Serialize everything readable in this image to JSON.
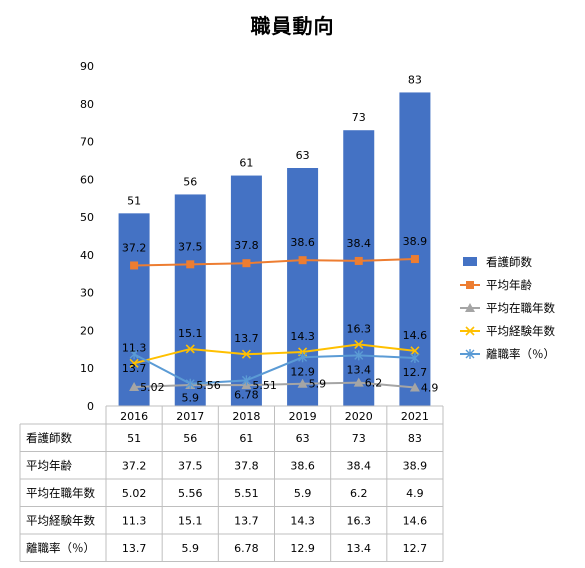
{
  "chart_data": {
    "type": "bar",
    "title": "職員動向",
    "categories": [
      "2016",
      "2017",
      "2018",
      "2019",
      "2020",
      "2021"
    ],
    "ylim": [
      0,
      90
    ],
    "yticks": [
      0,
      10,
      20,
      30,
      40,
      50,
      60,
      70,
      80,
      90
    ],
    "grid": false,
    "legend_position": "right",
    "series": [
      {
        "name": "看護師数",
        "kind": "bar",
        "color": "#4472C4",
        "marker": "none",
        "values": [
          51,
          56,
          61,
          63,
          73,
          83
        ],
        "labels": [
          "51",
          "56",
          "61",
          "63",
          "73",
          "83"
        ]
      },
      {
        "name": "平均年齢",
        "kind": "line",
        "color": "#ED7D31",
        "marker": "square",
        "values": [
          37.2,
          37.5,
          37.8,
          38.6,
          38.4,
          38.9
        ],
        "labels": [
          "37.2",
          "37.5",
          "37.8",
          "38.6",
          "38.4",
          "38.9"
        ]
      },
      {
        "name": "平均在職年数",
        "kind": "line",
        "color": "#A5A5A5",
        "marker": "triangle",
        "values": [
          5.02,
          5.56,
          5.51,
          5.9,
          6.2,
          4.9
        ],
        "labels": [
          "5.02",
          "5.56",
          "5.51",
          "5.9",
          "6.2",
          "4.9"
        ]
      },
      {
        "name": "平均経験年数",
        "kind": "line",
        "color": "#FFC000",
        "marker": "x",
        "values": [
          11.3,
          15.1,
          13.7,
          14.3,
          16.3,
          14.6
        ],
        "labels": [
          "11.3",
          "15.1",
          "13.7",
          "14.3",
          "16.3",
          "14.6"
        ]
      },
      {
        "name": "離職率（％）",
        "kind": "line",
        "color": "#5B9BD5",
        "marker": "star",
        "values": [
          13.7,
          5.9,
          6.78,
          12.9,
          13.4,
          12.7
        ],
        "labels": [
          "13.7",
          "5.9",
          "6.78",
          "12.9",
          "13.4",
          "12.7"
        ]
      }
    ],
    "table": {
      "rows": [
        {
          "label": "看護師数",
          "cells": [
            "51",
            "56",
            "61",
            "63",
            "73",
            "83"
          ]
        },
        {
          "label": "平均年齢",
          "cells": [
            "37.2",
            "37.5",
            "37.8",
            "38.6",
            "38.4",
            "38.9"
          ]
        },
        {
          "label": "平均在職年数",
          "cells": [
            "5.02",
            "5.56",
            "5.51",
            "5.9",
            "6.2",
            "4.9"
          ]
        },
        {
          "label": "平均経験年数",
          "cells": [
            "11.3",
            "15.1",
            "13.7",
            "14.3",
            "16.3",
            "14.6"
          ]
        },
        {
          "label": "離職率（％）",
          "cells": [
            "13.7",
            "5.9",
            "6.78",
            "12.9",
            "13.4",
            "12.7"
          ]
        }
      ]
    }
  }
}
